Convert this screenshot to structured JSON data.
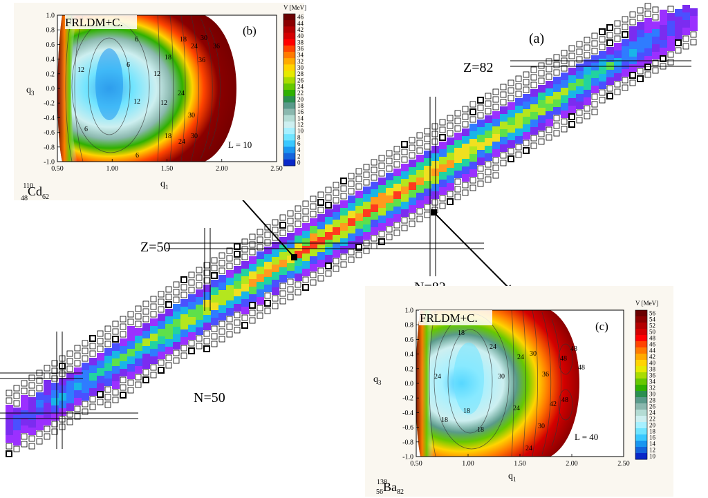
{
  "main_chart": {
    "panel_label": "(a)",
    "magic_labels": {
      "z82": "Z=82",
      "z50": "Z=50",
      "n82": "N=82",
      "n50": "N=50"
    }
  },
  "chart_data": [
    {
      "type": "heatmap",
      "description_label": "(a)",
      "content": "nuclear chart of nuclides colored by value; open squares mark nuclides without data",
      "magic_numbers": [
        "Z=50",
        "Z=82",
        "N=50",
        "N=82"
      ]
    },
    {
      "type": "contour",
      "panel_label": "(b)",
      "model": "FRLDM+C.",
      "nucleus": {
        "A": "110",
        "Z": "48",
        "symbol": "Cd",
        "N": "62"
      },
      "annotation": "L = 10",
      "xlabel": "q1",
      "ylabel": "q3",
      "xlim": [
        0.5,
        2.5
      ],
      "ylim": [
        -1.0,
        1.0
      ],
      "xticks": [
        "0.50",
        "1.00",
        "1.50",
        "2.00",
        "2.50"
      ],
      "yticks": [
        "1.0",
        "0.8",
        "0.6",
        "0.4",
        "0.2",
        "0.0",
        "-0.2",
        "-0.4",
        "-0.6",
        "-0.8",
        "-1.0"
      ],
      "colorbar": {
        "title": "V [MeV]",
        "ticks": [
          "46",
          "44",
          "42",
          "40",
          "38",
          "36",
          "34",
          "32",
          "30",
          "28",
          "26",
          "24",
          "22",
          "20",
          "18",
          "16",
          "14",
          "12",
          "10",
          "8",
          "6",
          "4",
          "2",
          "0"
        ],
        "colors": [
          "#6a0000",
          "#8b0000",
          "#b30000",
          "#d40000",
          "#ff0000",
          "#ff4400",
          "#ff7a00",
          "#ffaa00",
          "#ffd400",
          "#e6ea00",
          "#a9dc00",
          "#66c800",
          "#2fb000",
          "#2b8f4f",
          "#5a9a8a",
          "#8bb8ae",
          "#b4dcd4",
          "#cdeff0",
          "#a6f0ff",
          "#6fe4ff",
          "#39c8ff",
          "#1996f0",
          "#1464dc",
          "#0a28c8"
        ]
      },
      "contour_labels": [
        "12",
        "6",
        "6",
        "12",
        "6",
        "6",
        "12",
        "18",
        "24",
        "30",
        "36",
        "12",
        "18",
        "24",
        "30",
        "18",
        "24",
        "30",
        "36"
      ]
    },
    {
      "type": "contour",
      "panel_label": "(c)",
      "model": "FRLDM+C.",
      "nucleus": {
        "A": "138",
        "Z": "56",
        "symbol": "Ba",
        "N": "82"
      },
      "annotation": "L = 40",
      "xlabel": "q1",
      "ylabel": "q3",
      "xlim": [
        0.5,
        2.5
      ],
      "ylim": [
        -1.0,
        1.0
      ],
      "xticks": [
        "0.50",
        "1.00",
        "1.50",
        "2.00",
        "2.50"
      ],
      "yticks": [
        "1.0",
        "0.8",
        "0.6",
        "0.4",
        "0.2",
        "0.0",
        "-0.2",
        "-0.4",
        "-0.6",
        "-0.8",
        "-1.0"
      ],
      "colorbar": {
        "title": "V [MeV]",
        "ticks": [
          "56",
          "54",
          "52",
          "50",
          "48",
          "46",
          "44",
          "42",
          "40",
          "38",
          "36",
          "34",
          "32",
          "30",
          "28",
          "26",
          "24",
          "22",
          "20",
          "18",
          "16",
          "14",
          "12",
          "10"
        ],
        "colors": [
          "#6a0000",
          "#8b0000",
          "#b30000",
          "#d40000",
          "#ff0000",
          "#ff4400",
          "#ff7a00",
          "#ffaa00",
          "#ffd400",
          "#e6ea00",
          "#a9dc00",
          "#66c800",
          "#2fb000",
          "#2b8f4f",
          "#5a9a8a",
          "#8bb8ae",
          "#b4dcd4",
          "#cdeff0",
          "#a6f0ff",
          "#6fe4ff",
          "#39c8ff",
          "#1996f0",
          "#1464dc",
          "#0a28c8"
        ]
      },
      "contour_labels": [
        "24",
        "18",
        "18",
        "18",
        "24",
        "30",
        "18",
        "24",
        "24",
        "30",
        "36",
        "42",
        "48",
        "48",
        "48",
        "48",
        "30",
        "24"
      ]
    }
  ]
}
